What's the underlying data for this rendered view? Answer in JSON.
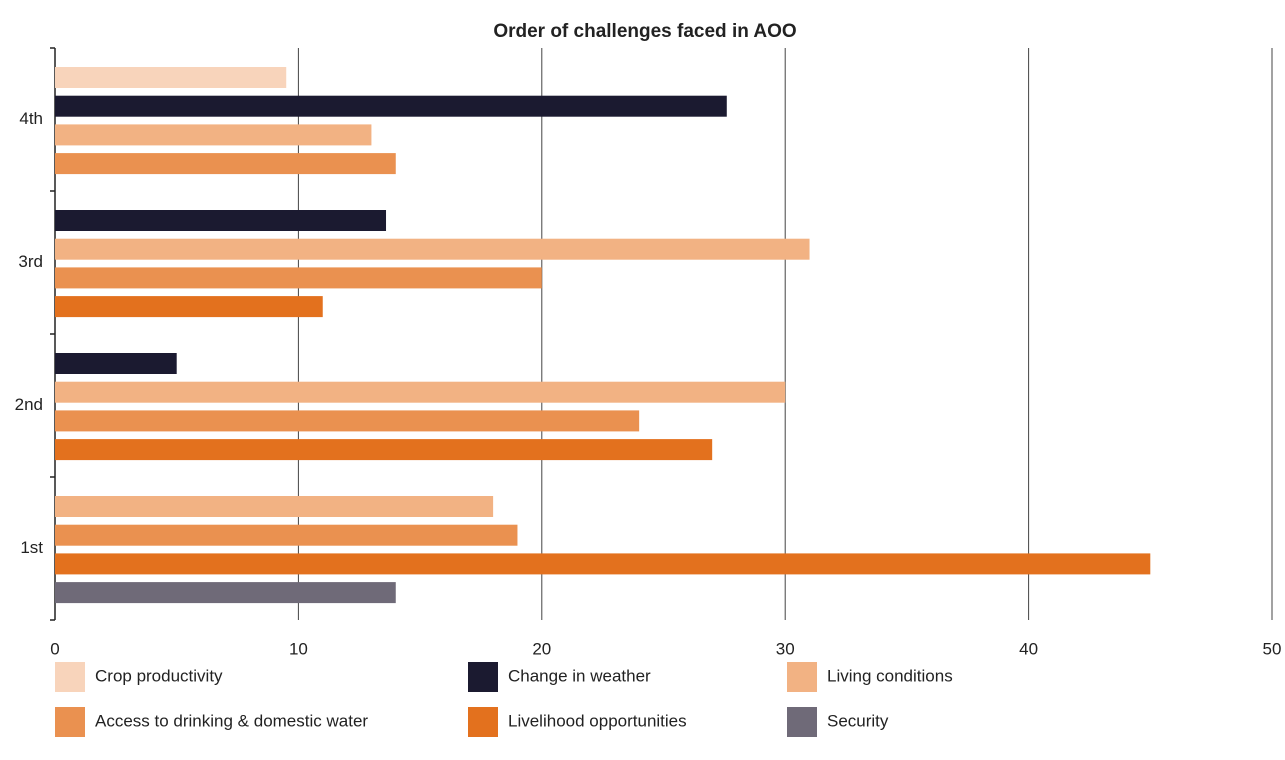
{
  "chart_data": {
    "type": "hbar",
    "title": "Order of challenges faced in AOO",
    "categories": [
      "4th",
      "3rd",
      "2nd",
      "1st"
    ],
    "series": [
      {
        "name": "Crop productivity",
        "color": "#f8d4bb",
        "values": [
          9.5,
          null,
          null,
          null
        ]
      },
      {
        "name": "Change in weather",
        "color": "#1b1a30",
        "values": [
          27.6,
          13.6,
          5,
          null
        ]
      },
      {
        "name": "Living conditions",
        "color": "#f2b283",
        "values": [
          13,
          31,
          30,
          18
        ]
      },
      {
        "name": "Access to drinking & domestic water",
        "color": "#ea9150",
        "values": [
          14,
          20,
          24,
          19
        ]
      },
      {
        "name": "Livelihood opportunities",
        "color": "#e3711e",
        "values": [
          null,
          11,
          27,
          45
        ]
      },
      {
        "name": "Security",
        "color": "#6f6a78",
        "values": [
          null,
          null,
          null,
          14
        ]
      }
    ],
    "xlim": [
      0,
      50
    ],
    "xticks": [
      0,
      10,
      20,
      30,
      40,
      50
    ],
    "grid": true
  }
}
